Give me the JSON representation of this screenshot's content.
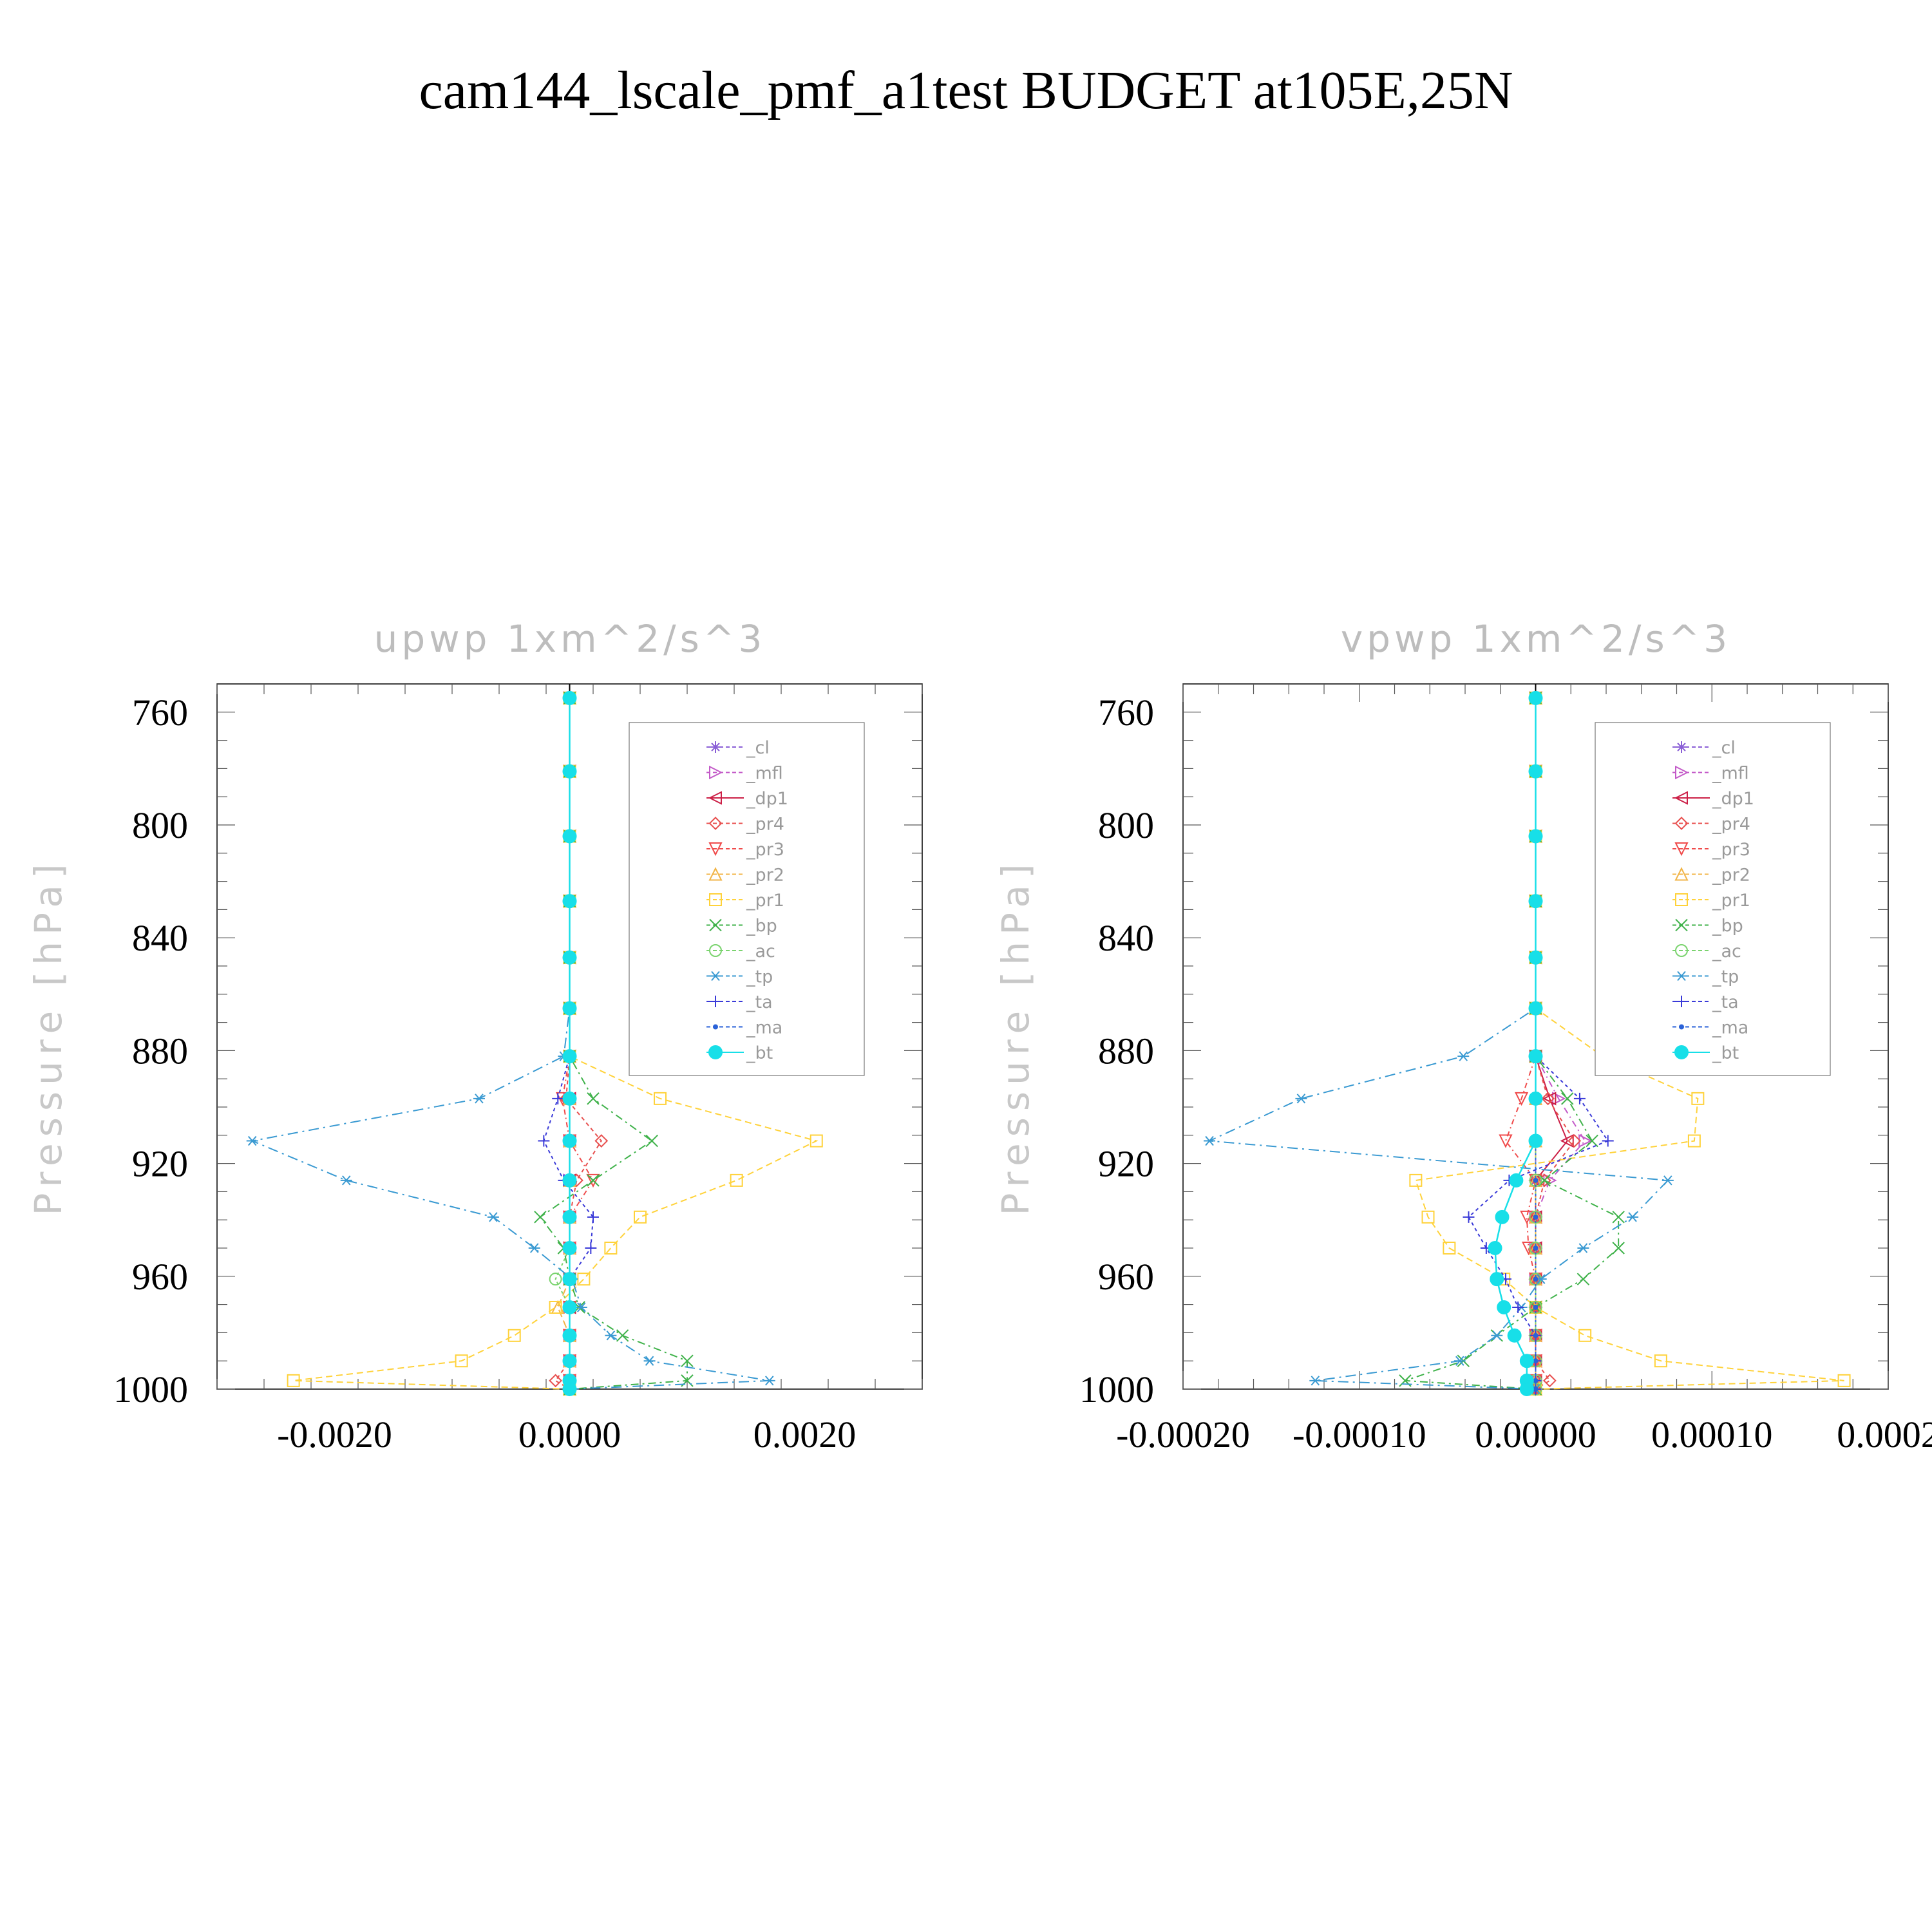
{
  "title": "cam144_lscale_pmf_a1test  BUDGET at105E,25N",
  "colors": {
    "cl": "#8a5fd6",
    "mfl": "#c35ac8",
    "dp1": "#cc1f46",
    "pr4": "#e8504f",
    "pr3": "#f04b4b",
    "pr2": "#f2b548",
    "pr1": "#ffd23a",
    "bp": "#3fb24a",
    "ac": "#7ad36e",
    "tp": "#3a9ad2",
    "ta": "#3a3ad8",
    "ma": "#2a62d8",
    "bt": "#17dfe8"
  },
  "chart_data": [
    {
      "type": "line",
      "title": "upwp    1xm^2/s^3",
      "ylabel": "Pressure  [hPa]",
      "xlim": [
        -0.003,
        0.003
      ],
      "ylim": [
        1000,
        750
      ],
      "y_reversed": true,
      "xticks": [
        -0.002,
        0.0,
        0.002
      ],
      "xtick_labels": [
        "-0.0020",
        "0.0000",
        "0.0020"
      ],
      "yticks": [
        760,
        800,
        840,
        880,
        920,
        960,
        1000
      ],
      "ytick_labels": [
        "760",
        "800",
        "840",
        "880",
        "920",
        "960",
        "1000"
      ],
      "legend_position": "top-right",
      "levels": [
        755,
        781,
        804,
        827,
        847,
        865,
        882,
        897,
        912,
        926,
        939,
        950,
        961,
        971,
        981,
        990,
        997,
        1000
      ],
      "series": [
        {
          "name": "_cl",
          "key": "cl",
          "marker": "star",
          "values": [
            0,
            0,
            0,
            0,
            0,
            0,
            0,
            0,
            0,
            0,
            0,
            0,
            0,
            0,
            0,
            0,
            0,
            0
          ]
        },
        {
          "name": "_mfl",
          "key": "mfl",
          "marker": "triangle-right",
          "values": [
            0,
            0,
            0,
            0,
            0,
            0,
            0,
            0,
            0,
            0,
            0,
            0,
            0,
            0,
            0,
            0,
            0,
            0
          ]
        },
        {
          "name": "_dp1",
          "key": "dp1",
          "marker": "triangle-left",
          "values": [
            0,
            0,
            0,
            0,
            0,
            0,
            0,
            0,
            0,
            0,
            0,
            0,
            0,
            0,
            0,
            0,
            0,
            0
          ]
        },
        {
          "name": "_pr4",
          "key": "pr4",
          "marker": "diamond",
          "values": [
            0,
            0,
            0,
            0,
            0,
            0,
            0,
            -3e-05,
            0.00027,
            6e-05,
            0,
            0,
            0,
            0,
            0,
            0,
            -0.00012,
            0
          ]
        },
        {
          "name": "_pr3",
          "key": "pr3",
          "marker": "triangle-down",
          "values": [
            0,
            0,
            0,
            0,
            0,
            0,
            0,
            -6e-05,
            0,
            0.0002,
            0,
            0,
            0,
            0,
            0,
            0,
            0,
            0
          ]
        },
        {
          "name": "_pr2",
          "key": "pr2",
          "marker": "triangle-up",
          "values": [
            0,
            0,
            0,
            0,
            0,
            0,
            0,
            0,
            0,
            0,
            0,
            0,
            0,
            -0.0001,
            0,
            0,
            0,
            0
          ]
        },
        {
          "name": "_pr1",
          "key": "pr1",
          "marker": "square",
          "values": [
            0,
            0,
            0,
            0,
            0,
            0,
            0,
            0.00077,
            0.0021,
            0.00142,
            0.0006,
            0.00035,
            0.00012,
            -0.00012,
            -0.00047,
            -0.00092,
            -0.00235,
            0
          ]
        },
        {
          "name": "_bp",
          "key": "bp",
          "marker": "x",
          "values": [
            0,
            0,
            0,
            0,
            0,
            0,
            0,
            0.0002,
            0.0007,
            0.0002,
            -0.00025,
            -5e-05,
            0,
            8e-05,
            0.00045,
            0.001,
            0.001,
            0
          ]
        },
        {
          "name": "_ac",
          "key": "ac",
          "marker": "circle-open",
          "values": [
            0,
            0,
            0,
            0,
            0,
            0,
            0,
            0,
            0,
            0,
            0,
            0,
            -0.00012,
            0,
            0,
            0,
            0,
            0
          ]
        },
        {
          "name": "_tp",
          "key": "tp",
          "marker": "asterisk",
          "values": [
            0,
            0,
            0,
            0,
            0,
            0,
            -5e-05,
            -0.00077,
            -0.0027,
            -0.0019,
            -0.00065,
            -0.0003,
            2e-05,
            0.0001,
            0.00035,
            0.00068,
            0.0017,
            0
          ]
        },
        {
          "name": "_ta",
          "key": "ta",
          "marker": "plus",
          "values": [
            0,
            0,
            0,
            0,
            0,
            0,
            0,
            -0.0001,
            -0.00022,
            -5e-05,
            0.0002,
            0.00018,
            0,
            0,
            0,
            0,
            0,
            0
          ]
        },
        {
          "name": "_ma",
          "key": "ma",
          "marker": "dot",
          "values": [
            0,
            0,
            0,
            0,
            0,
            0,
            0,
            0,
            0,
            0,
            0,
            0,
            0,
            0,
            0,
            0,
            0,
            0
          ]
        },
        {
          "name": "_bt",
          "key": "bt",
          "marker": "circle-filled",
          "values": [
            0,
            0,
            0,
            0,
            0,
            0,
            0,
            0,
            0,
            0,
            0,
            0,
            0,
            0,
            0,
            0,
            0,
            0
          ]
        }
      ]
    },
    {
      "type": "line",
      "title": "vpwp    1xm^2/s^3",
      "ylabel": "Pressure  [hPa]",
      "xlim": [
        -0.0002,
        0.0002
      ],
      "ylim": [
        1000,
        750
      ],
      "y_reversed": true,
      "xticks": [
        -0.0002,
        -0.0001,
        0.0,
        0.0001,
        0.0002
      ],
      "xtick_labels": [
        "-0.00020",
        "-0.00010",
        "0.00000",
        "0.00010",
        "0.0002"
      ],
      "yticks": [
        760,
        800,
        840,
        880,
        920,
        960,
        1000
      ],
      "ytick_labels": [
        "760",
        "800",
        "840",
        "880",
        "920",
        "960",
        "1000"
      ],
      "legend_position": "top-right",
      "levels": [
        755,
        781,
        804,
        827,
        847,
        865,
        882,
        897,
        912,
        926,
        939,
        950,
        961,
        971,
        981,
        990,
        997,
        1000
      ],
      "series": [
        {
          "name": "_cl",
          "key": "cl",
          "marker": "star",
          "values": [
            0,
            0,
            0,
            0,
            0,
            0,
            0,
            0,
            0,
            0,
            0,
            0,
            0,
            0,
            0,
            0,
            0,
            0
          ]
        },
        {
          "name": "_mfl",
          "key": "mfl",
          "marker": "triangle-right",
          "values": [
            0,
            0,
            0,
            0,
            0,
            0,
            0,
            1.3e-05,
            2.8e-05,
            8e-06,
            0,
            0,
            0,
            0,
            0,
            0,
            0,
            0
          ]
        },
        {
          "name": "_dp1",
          "key": "dp1",
          "marker": "triangle-left",
          "values": [
            0,
            0,
            0,
            0,
            0,
            0,
            0,
            8e-06,
            1.8e-05,
            0,
            0,
            0,
            0,
            0,
            0,
            0,
            0,
            0
          ]
        },
        {
          "name": "_pr4",
          "key": "pr4",
          "marker": "diamond",
          "values": [
            0,
            0,
            0,
            0,
            0,
            0,
            0,
            7e-06,
            2.2e-05,
            5e-06,
            0,
            0,
            0,
            0,
            0,
            0,
            8e-06,
            0
          ]
        },
        {
          "name": "_pr3",
          "key": "pr3",
          "marker": "triangle-down",
          "values": [
            0,
            0,
            0,
            0,
            0,
            0,
            0,
            -8e-06,
            -1.7e-05,
            0,
            -5e-06,
            -4e-06,
            0,
            0,
            0,
            0,
            0,
            0
          ]
        },
        {
          "name": "_pr2",
          "key": "pr2",
          "marker": "triangle-up",
          "values": [
            0,
            0,
            0,
            0,
            0,
            0,
            0,
            0,
            0,
            0,
            0,
            0,
            0,
            0,
            0,
            0,
            0,
            0
          ]
        },
        {
          "name": "_pr1",
          "key": "pr1",
          "marker": "square",
          "values": [
            0,
            0,
            0,
            0,
            0,
            0,
            3.8e-05,
            9.2e-05,
            9e-05,
            -6.8e-05,
            -6.1e-05,
            -4.9e-05,
            -1.8e-05,
            0,
            2.8e-05,
            7.1e-05,
            0.000175,
            0
          ]
        },
        {
          "name": "_bp",
          "key": "bp",
          "marker": "x",
          "values": [
            0,
            0,
            0,
            0,
            0,
            0,
            0,
            1.8e-05,
            3.2e-05,
            5e-06,
            4.7e-05,
            4.7e-05,
            2.7e-05,
            0,
            -2.2e-05,
            -4.1e-05,
            -7.4e-05,
            0
          ]
        },
        {
          "name": "_ac",
          "key": "ac",
          "marker": "circle-open",
          "values": [
            0,
            0,
            0,
            0,
            0,
            0,
            0,
            0,
            0,
            0,
            0,
            0,
            0,
            0,
            0,
            0,
            0,
            0
          ]
        },
        {
          "name": "_tp",
          "key": "tp",
          "marker": "asterisk",
          "values": [
            0,
            0,
            0,
            0,
            0,
            0,
            -4.1e-05,
            -0.000133,
            -0.000185,
            7.5e-05,
            5.5e-05,
            2.7e-05,
            3e-06,
            -8e-06,
            -2.2e-05,
            -4.3e-05,
            -0.000125,
            0
          ]
        },
        {
          "name": "_ta",
          "key": "ta",
          "marker": "plus",
          "values": [
            0,
            0,
            0,
            0,
            0,
            0,
            0,
            2.5e-05,
            4.1e-05,
            -1.5e-05,
            -3.8e-05,
            -2.8e-05,
            -1.7e-05,
            -1e-05,
            0,
            0,
            0,
            0
          ]
        },
        {
          "name": "_ma",
          "key": "ma",
          "marker": "dot",
          "values": [
            0,
            0,
            0,
            0,
            0,
            0,
            0,
            0,
            0,
            0,
            0,
            0,
            0,
            0,
            0,
            0,
            0,
            0
          ]
        },
        {
          "name": "_bt",
          "key": "bt",
          "marker": "circle-filled",
          "values": [
            0,
            0,
            0,
            0,
            0,
            0,
            0,
            0,
            0,
            -1.1e-05,
            -1.9e-05,
            -2.3e-05,
            -2.2e-05,
            -1.8e-05,
            -1.2e-05,
            -5e-06,
            -5e-06,
            -5e-06
          ]
        }
      ]
    }
  ]
}
